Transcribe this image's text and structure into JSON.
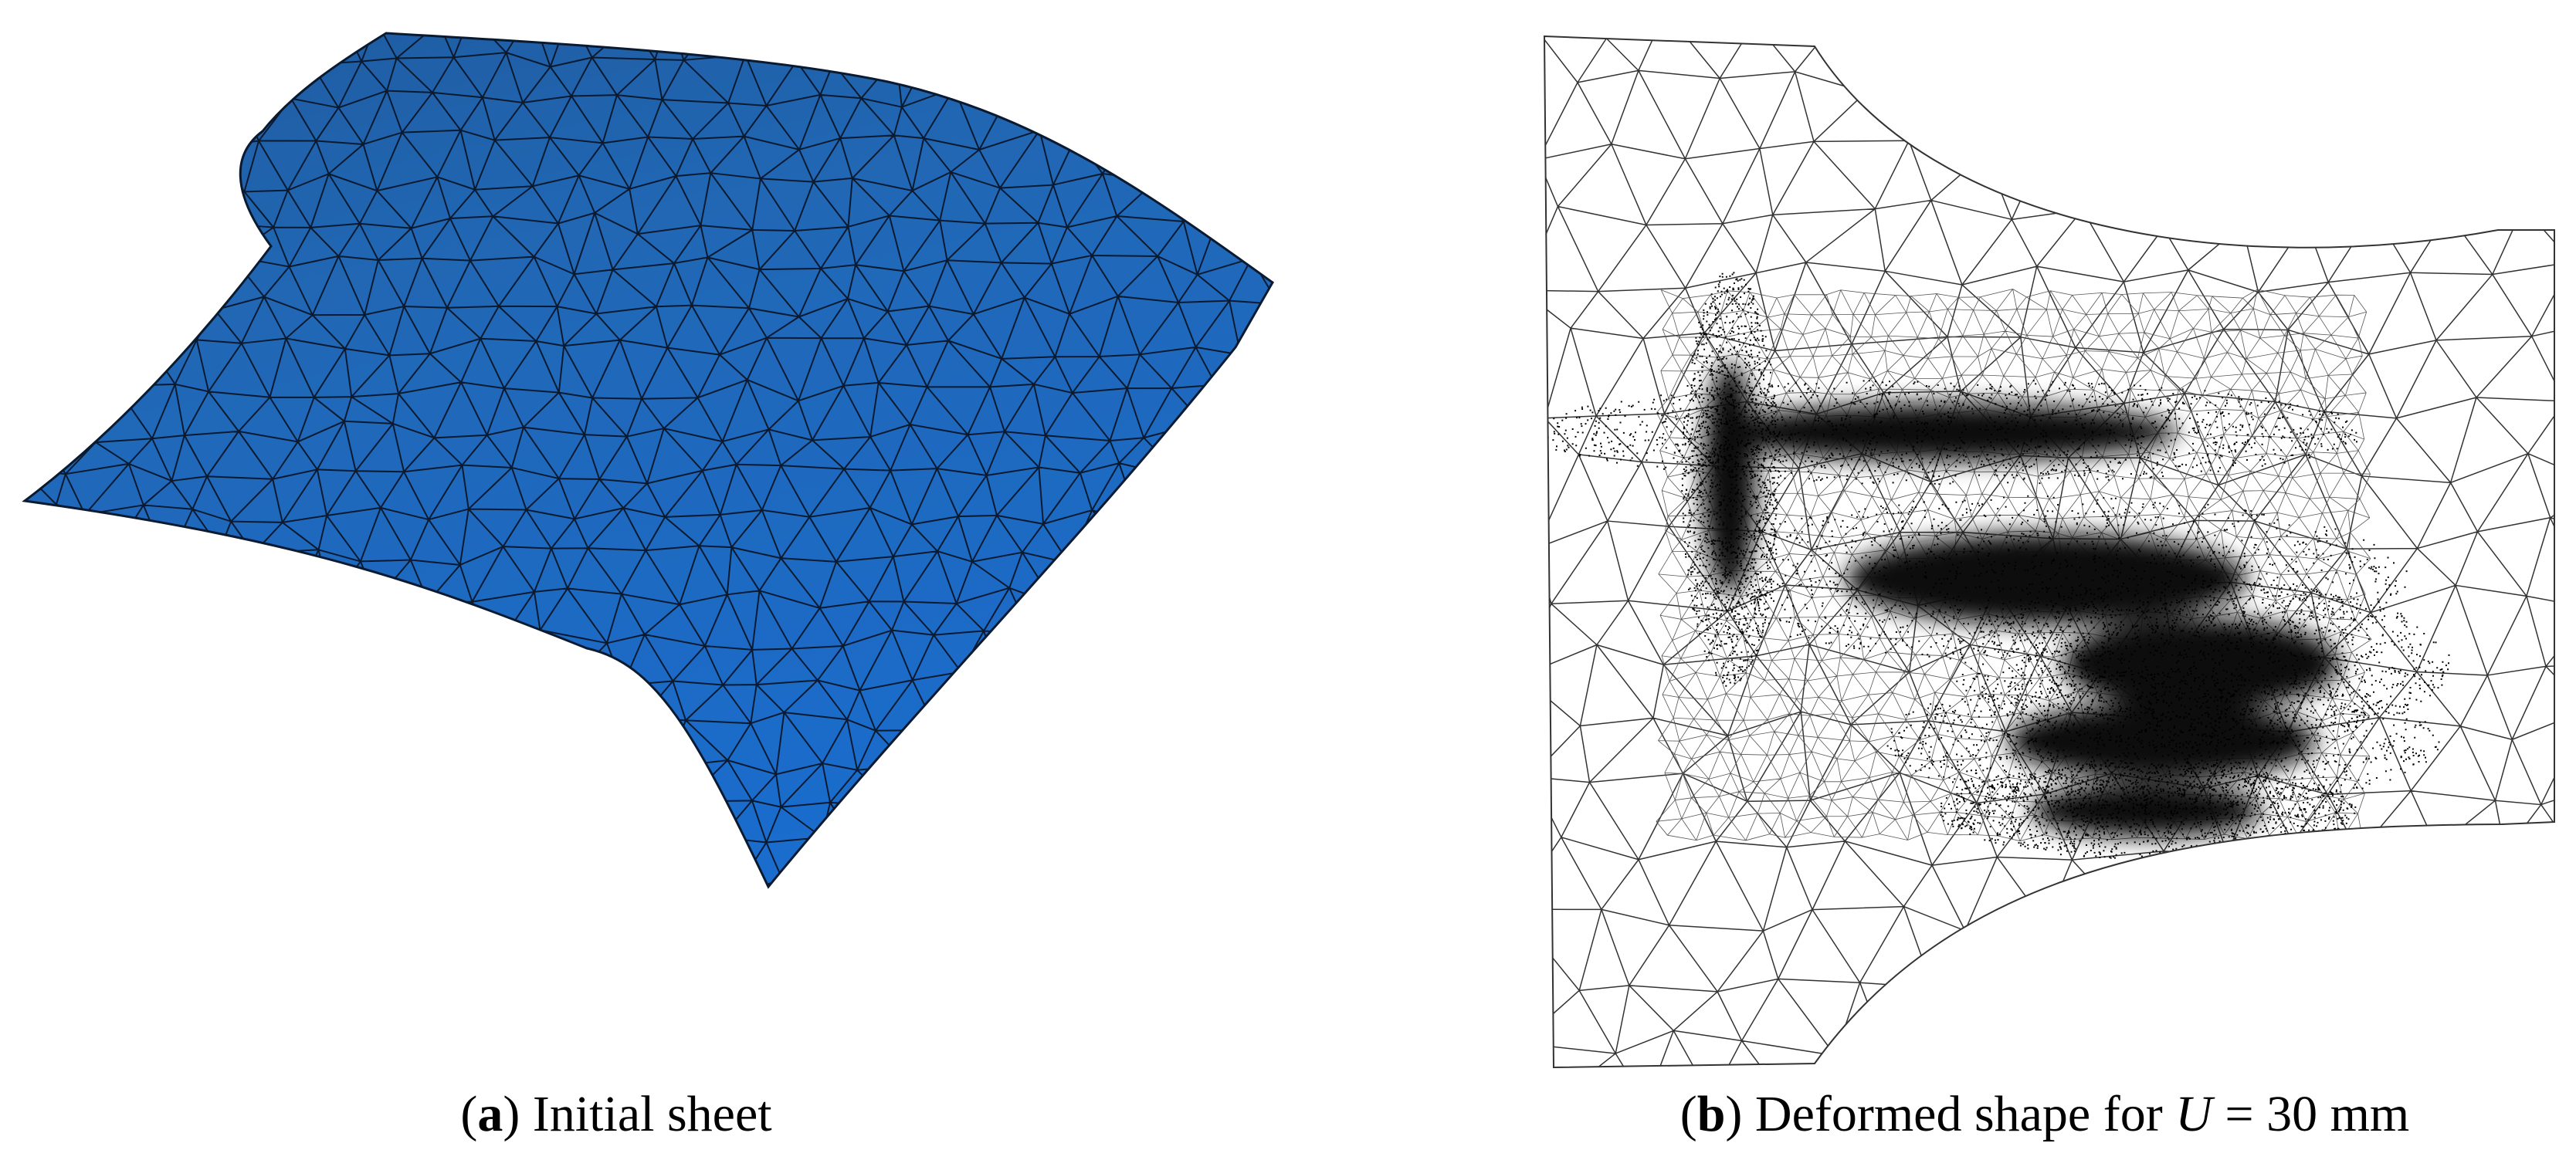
{
  "panels": [
    {
      "caption": [
        {
          "text": "(",
          "style": "normal"
        },
        {
          "text": "a",
          "style": "bold"
        },
        {
          "text": ") Initial sheet",
          "style": "normal"
        }
      ]
    },
    {
      "caption": [
        {
          "text": "(",
          "style": "normal"
        },
        {
          "text": "b",
          "style": "bold"
        },
        {
          "text": ") Deformed shape for ",
          "style": "normal"
        },
        {
          "text": "U",
          "style": "italic"
        },
        {
          "text": " = 30 mm",
          "style": "normal"
        }
      ]
    }
  ]
}
